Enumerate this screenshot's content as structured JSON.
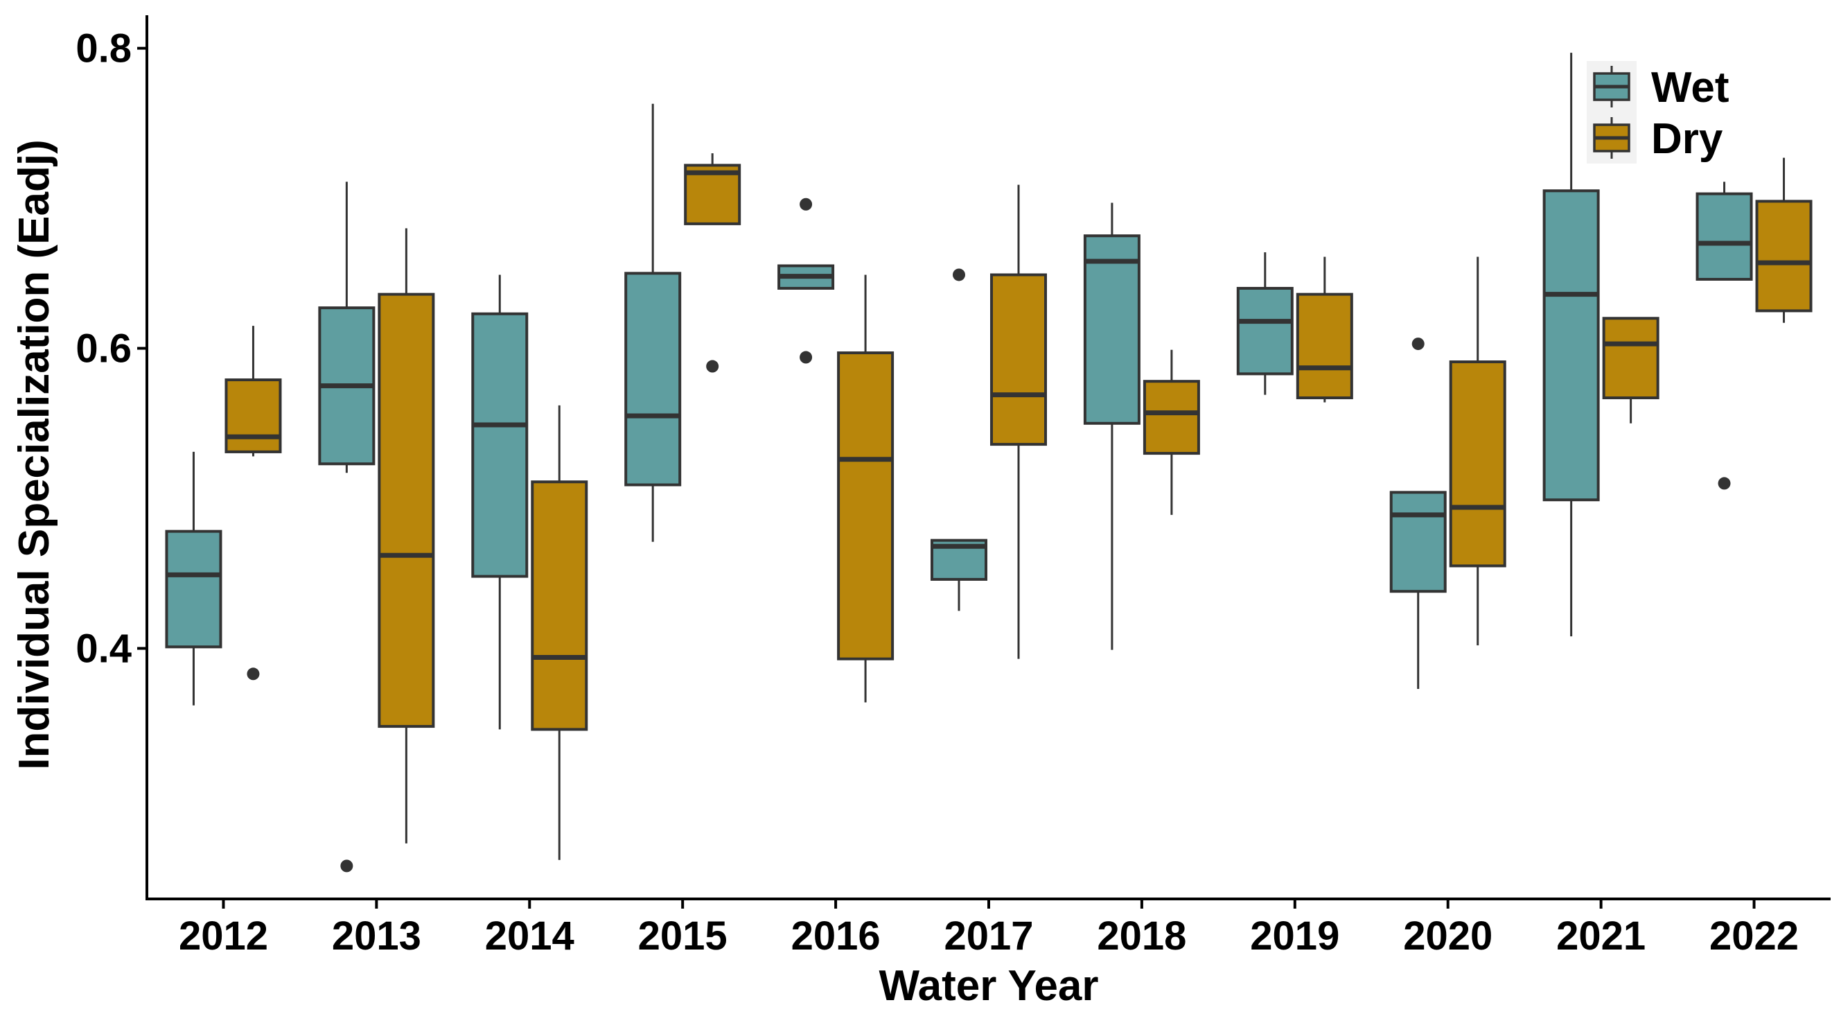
{
  "chart_data": {
    "type": "boxplot",
    "xlabel": "Water Year",
    "ylabel": "Individual Specialization (Eadj)",
    "categories": [
      "2012",
      "2013",
      "2014",
      "2015",
      "2016",
      "2017",
      "2018",
      "2019",
      "2020",
      "2021",
      "2022"
    ],
    "y_ticks": [
      {
        "value": 0.4,
        "label": "0.4"
      },
      {
        "value": 0.6,
        "label": "0.6"
      },
      {
        "value": 0.8,
        "label": "0.8"
      }
    ],
    "ylim": [
      0.233,
      0.822
    ],
    "legend_position": "top-right",
    "series": [
      {
        "name": "Wet",
        "color": "#5f9ea0",
        "boxes": [
          {
            "min": 0.362,
            "q1": 0.401,
            "median": 0.449,
            "q3": 0.478,
            "max": 0.531,
            "outliers": []
          },
          {
            "min": 0.517,
            "q1": 0.523,
            "median": 0.575,
            "q3": 0.627,
            "max": 0.711,
            "outliers": [
              0.255
            ]
          },
          {
            "min": 0.346,
            "q1": 0.448,
            "median": 0.549,
            "q3": 0.623,
            "max": 0.649,
            "outliers": []
          },
          {
            "min": 0.471,
            "q1": 0.509,
            "median": 0.555,
            "q3": 0.65,
            "max": 0.763,
            "outliers": []
          },
          {
            "min": 0.64,
            "q1": 0.64,
            "median": 0.648,
            "q3": 0.655,
            "max": 0.655,
            "outliers": [
              0.696,
              0.594
            ]
          },
          {
            "min": 0.425,
            "q1": 0.446,
            "median": 0.468,
            "q3": 0.472,
            "max": 0.472,
            "outliers": [
              0.649
            ]
          },
          {
            "min": 0.399,
            "q1": 0.55,
            "median": 0.658,
            "q3": 0.675,
            "max": 0.697,
            "outliers": []
          },
          {
            "min": 0.569,
            "q1": 0.583,
            "median": 0.618,
            "q3": 0.64,
            "max": 0.664,
            "outliers": []
          },
          {
            "min": 0.373,
            "q1": 0.438,
            "median": 0.489,
            "q3": 0.504,
            "max": 0.504,
            "outliers": [
              0.603
            ]
          },
          {
            "min": 0.408,
            "q1": 0.499,
            "median": 0.636,
            "q3": 0.705,
            "max": 0.797,
            "outliers": []
          },
          {
            "min": 0.646,
            "q1": 0.646,
            "median": 0.67,
            "q3": 0.703,
            "max": 0.711,
            "outliers": [
              0.51
            ]
          }
        ]
      },
      {
        "name": "Dry",
        "color": "#b8860b",
        "boxes": [
          {
            "min": 0.528,
            "q1": 0.531,
            "median": 0.541,
            "q3": 0.579,
            "max": 0.615,
            "outliers": [
              0.383
            ]
          },
          {
            "min": 0.27,
            "q1": 0.348,
            "median": 0.462,
            "q3": 0.636,
            "max": 0.68,
            "outliers": []
          },
          {
            "min": 0.259,
            "q1": 0.346,
            "median": 0.394,
            "q3": 0.511,
            "max": 0.562,
            "outliers": []
          },
          {
            "min": 0.683,
            "q1": 0.683,
            "median": 0.717,
            "q3": 0.722,
            "max": 0.73,
            "outliers": [
              0.588
            ]
          },
          {
            "min": 0.364,
            "q1": 0.393,
            "median": 0.526,
            "q3": 0.597,
            "max": 0.649,
            "outliers": []
          },
          {
            "min": 0.393,
            "q1": 0.536,
            "median": 0.569,
            "q3": 0.649,
            "max": 0.709,
            "outliers": []
          },
          {
            "min": 0.489,
            "q1": 0.53,
            "median": 0.557,
            "q3": 0.578,
            "max": 0.599,
            "outliers": []
          },
          {
            "min": 0.564,
            "q1": 0.567,
            "median": 0.587,
            "q3": 0.636,
            "max": 0.661,
            "outliers": []
          },
          {
            "min": 0.402,
            "q1": 0.455,
            "median": 0.494,
            "q3": 0.591,
            "max": 0.661,
            "outliers": []
          },
          {
            "min": 0.55,
            "q1": 0.567,
            "median": 0.603,
            "q3": 0.62,
            "max": 0.62,
            "outliers": []
          },
          {
            "min": 0.617,
            "q1": 0.625,
            "median": 0.657,
            "q3": 0.698,
            "max": 0.727,
            "outliers": []
          }
        ]
      }
    ]
  }
}
